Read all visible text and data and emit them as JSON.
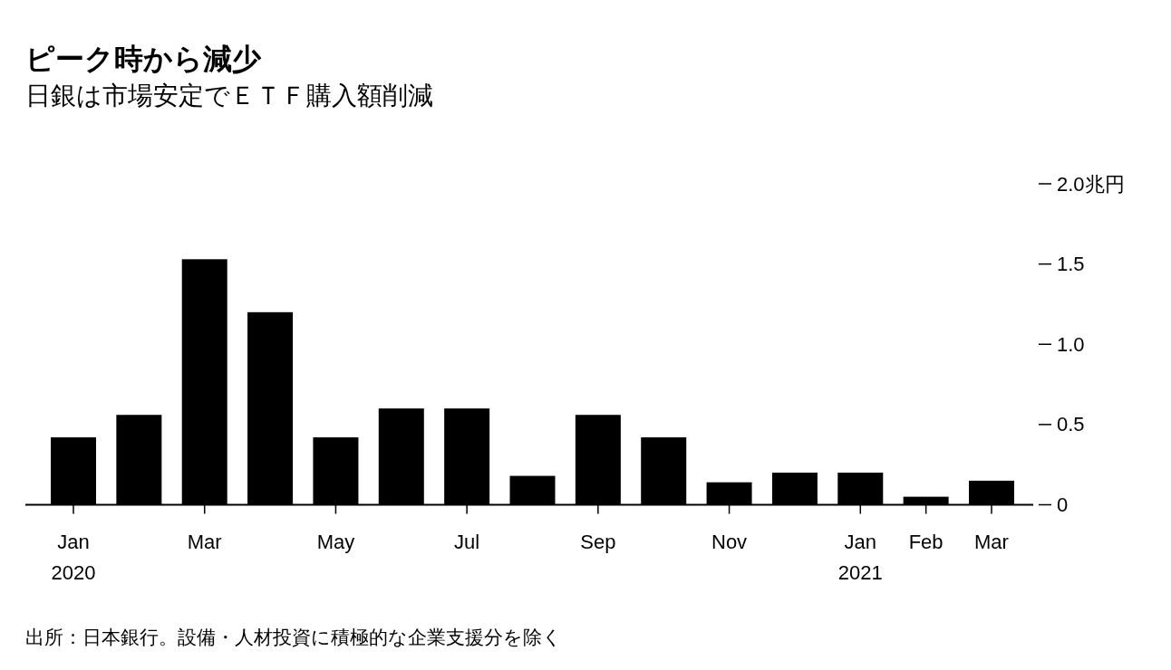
{
  "chart_data": {
    "type": "bar",
    "title": "ピーク時から減少",
    "subtitle": "日銀は市場安定でＥＴＦ購入額削減",
    "categories": [
      "Jan\n2020",
      null,
      "Mar",
      null,
      "May",
      null,
      "Jul",
      null,
      "Sep",
      null,
      "Nov",
      null,
      "Jan\n2021",
      "Feb",
      "Mar"
    ],
    "values": [
      0.42,
      0.56,
      1.53,
      1.2,
      0.42,
      0.6,
      0.6,
      0.18,
      0.56,
      0.42,
      0.14,
      0.2,
      0.2,
      0.05,
      0.15
    ],
    "color": "#000000",
    "ylim": [
      0,
      2
    ],
    "yticks": [
      0,
      0.5,
      {
        "value": 1,
        "label": "1.0"
      },
      1.5,
      {
        "value": 2,
        "label": "2.0兆円"
      }
    ],
    "annotations": [
      "出所：日本銀行。設備・人材投資に積極的な企業支援分を除く"
    ]
  }
}
